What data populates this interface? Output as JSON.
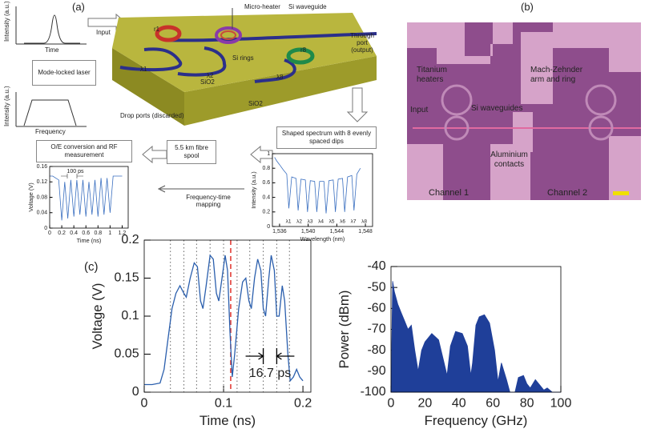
{
  "figure": {
    "panel_a": {
      "label": "(a)",
      "inset_pulse_ylabel": "Intensity (a.u.)",
      "inset_pulse_xlabel": "Time",
      "input": "Input",
      "micro_heater": "Micro-heater",
      "si_waveguide": "Si waveguide",
      "through_port": "Through port (output)",
      "r1": "r1",
      "si_rings": "Si rings",
      "r8": "r8",
      "lambda1": "λ1",
      "lambda2": "λ2",
      "lambda8": "λ8",
      "sio2_top": "SiO2",
      "sio2_side": "SiO2",
      "drop_ports": "Drop ports (discarded)",
      "laser": "Mode-locked laser",
      "inset_spectrum_ylabel": "Intensity (a.u.)",
      "inset_spectrum_xlabel": "Frequency",
      "shaped": "Shaped spectrum with 8 evenly spaced dips",
      "spool": "5.5 km fibre spool",
      "oe": "O/E conversion and RF measurement",
      "mapping": "Frequency-time mapping"
    },
    "panel_b": {
      "label": "(b)",
      "heaters": "Titanium heaters",
      "mz": "Mach-Zehnder arm and ring",
      "input": "Input",
      "waveguides": "Si waveguides",
      "contacts": "Aluminium contacts",
      "channel1": "Channel 1",
      "channel2": "Channel 2"
    },
    "panel_c": {
      "label": "(c)"
    }
  },
  "chart_data": [
    {
      "type": "line",
      "xlabel": "Time (ns)",
      "ylabel": "Voltage (V)",
      "color": "#3a6fc0",
      "xlim": [
        0,
        1.3
      ],
      "ylim": [
        0,
        0.16
      ],
      "xticks": [
        0,
        0.2,
        0.4,
        0.6,
        0.8,
        1,
        1.2
      ],
      "yticks": [
        0,
        0.04,
        0.08,
        0.12,
        0.16
      ],
      "annotation": "100 ps",
      "x": [
        0,
        0.05,
        0.1,
        0.15,
        0.2,
        0.25,
        0.3,
        0.35,
        0.4,
        0.45,
        0.5,
        0.55,
        0.6,
        0.65,
        0.7,
        0.75,
        0.8,
        0.85,
        0.9,
        0.95,
        1.0,
        1.05,
        1.1,
        1.15,
        1.2
      ],
      "values": [
        0.135,
        0.135,
        0.13,
        0.125,
        0.02,
        0.12,
        0.025,
        0.125,
        0.03,
        0.125,
        0.035,
        0.125,
        0.03,
        0.12,
        0.035,
        0.125,
        0.03,
        0.13,
        0.035,
        0.13,
        0.04,
        0.135,
        0.135,
        0.135,
        0.135
      ]
    },
    {
      "type": "line",
      "xlabel": "Wavelength (nm)",
      "ylabel": "Intensity (a.u.)",
      "color": "#3a6fc0",
      "xlim": [
        1535,
        1549
      ],
      "ylim": [
        0,
        1
      ],
      "xticks": [
        {
          "value": 1536,
          "label": "1,536"
        },
        {
          "value": 1540,
          "label": "1,540"
        },
        {
          "value": 1544,
          "label": "1,544"
        },
        {
          "value": 1548,
          "label": "1,548"
        }
      ],
      "yticks": [
        0,
        0.2,
        0.4,
        0.6,
        0.8,
        1
      ],
      "dip_labels": [
        "λ1",
        "λ2",
        "λ3",
        "λ4",
        "λ5",
        "λ6",
        "λ7",
        "λ8"
      ],
      "x": [
        1535.3,
        1535.6,
        1536,
        1536.5,
        1537,
        1537.3,
        1537.7,
        1538.3,
        1538.6,
        1539,
        1539.6,
        1539.9,
        1540.3,
        1540.9,
        1541.2,
        1541.6,
        1542.2,
        1542.5,
        1542.9,
        1543.5,
        1543.8,
        1544.2,
        1544.8,
        1545.1,
        1545.5,
        1546.1,
        1546.4,
        1546.8,
        1547.3
      ],
      "values": [
        0.95,
        0.9,
        0.85,
        0.78,
        0.72,
        0.25,
        0.68,
        0.66,
        0.22,
        0.65,
        0.64,
        0.2,
        0.63,
        0.62,
        0.2,
        0.62,
        0.62,
        0.18,
        0.63,
        0.64,
        0.2,
        0.65,
        0.66,
        0.2,
        0.68,
        0.7,
        0.22,
        0.72,
        0.8
      ]
    },
    {
      "type": "line",
      "xlabel": "Time (ns)",
      "ylabel": "Voltage (V)",
      "color": "#2b5fad",
      "xlim": [
        0,
        0.21
      ],
      "ylim": [
        0,
        0.2
      ],
      "xticks": [
        0,
        0.1,
        0.2
      ],
      "yticks": [
        0,
        0.05,
        0.1,
        0.15,
        0.2
      ],
      "annotation": "16.7 ps",
      "reference_lines": [
        0.033,
        0.05,
        0.066,
        0.083,
        0.1,
        0.117,
        0.133,
        0.15,
        0.167,
        0.183
      ],
      "marker_line": 0.109,
      "x": [
        0,
        0.01,
        0.02,
        0.025,
        0.03,
        0.035,
        0.04,
        0.045,
        0.05,
        0.053,
        0.058,
        0.063,
        0.067,
        0.071,
        0.074,
        0.078,
        0.083,
        0.087,
        0.091,
        0.094,
        0.098,
        0.102,
        0.105,
        0.108,
        0.111,
        0.114,
        0.119,
        0.124,
        0.128,
        0.132,
        0.135,
        0.139,
        0.143,
        0.147,
        0.15,
        0.153,
        0.157,
        0.16,
        0.164,
        0.167,
        0.17,
        0.174,
        0.177,
        0.181,
        0.184,
        0.188,
        0.192,
        0.196,
        0.2
      ],
      "values": [
        0.01,
        0.01,
        0.012,
        0.03,
        0.07,
        0.11,
        0.13,
        0.14,
        0.13,
        0.125,
        0.15,
        0.17,
        0.165,
        0.12,
        0.11,
        0.14,
        0.18,
        0.175,
        0.13,
        0.12,
        0.15,
        0.18,
        0.16,
        0.08,
        0.02,
        0.05,
        0.11,
        0.145,
        0.15,
        0.12,
        0.11,
        0.15,
        0.175,
        0.16,
        0.11,
        0.1,
        0.15,
        0.18,
        0.16,
        0.1,
        0.1,
        0.14,
        0.12,
        0.05,
        0.015,
        0.02,
        0.03,
        0.02,
        0.015
      ]
    },
    {
      "type": "area",
      "xlabel": "Frequency (GHz)",
      "ylabel": "Power (dBm)",
      "color": "#1f3f99",
      "xlim": [
        0,
        100
      ],
      "ylim": [
        -100,
        -40
      ],
      "xticks": [
        0,
        20,
        40,
        60,
        80,
        100
      ],
      "yticks": [
        -40,
        -50,
        -60,
        -70,
        -80,
        -90,
        -100
      ],
      "x": [
        0,
        1,
        2,
        4,
        6,
        8,
        10,
        12,
        14,
        16,
        18,
        20,
        24,
        28,
        31,
        33,
        35,
        38,
        42,
        45,
        47,
        48,
        50,
        52,
        55,
        58,
        61,
        63,
        65,
        68,
        70,
        73,
        75,
        78,
        80,
        82,
        85,
        87,
        90,
        92,
        95,
        98,
        100
      ],
      "values": [
        -100,
        -47,
        -52,
        -58,
        -62,
        -66,
        -70,
        -68,
        -80,
        -90,
        -80,
        -76,
        -72,
        -75,
        -85,
        -92,
        -78,
        -71,
        -72,
        -78,
        -92,
        -86,
        -68,
        -64,
        -63,
        -67,
        -80,
        -95,
        -86,
        -94,
        -100,
        -100,
        -93,
        -92,
        -96,
        -98,
        -94,
        -96,
        -99,
        -98,
        -100,
        -100,
        -100
      ]
    }
  ]
}
